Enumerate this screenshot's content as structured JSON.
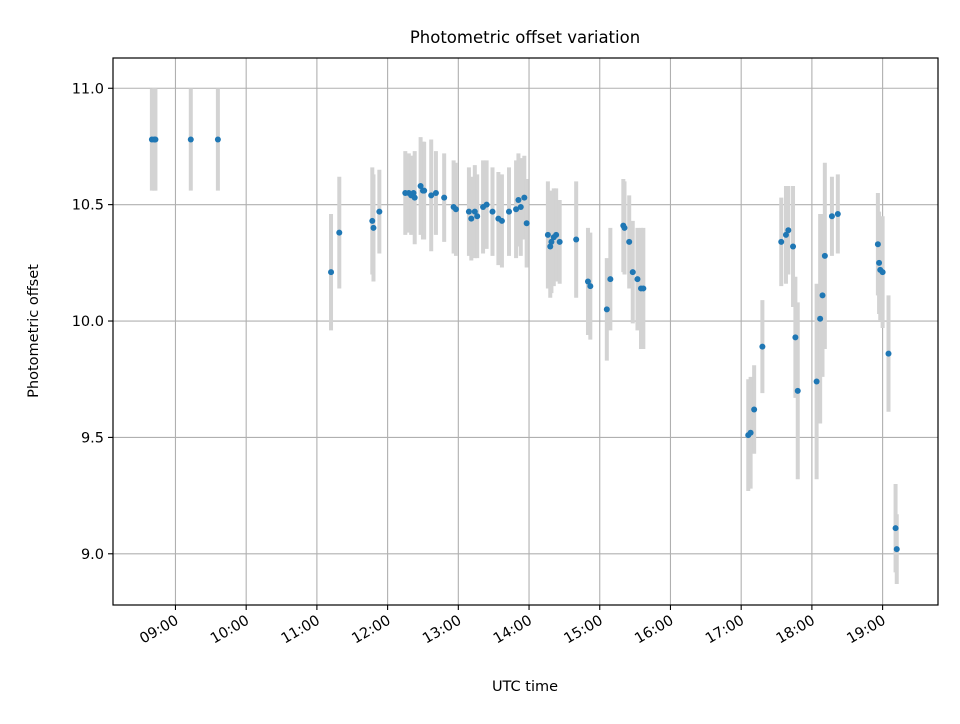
{
  "chart_data": {
    "type": "scatter",
    "title": "Photometric offset variation",
    "xlabel": "UTC time",
    "ylabel": "Photometric offset",
    "xlim": [
      "08:07",
      "19:47"
    ],
    "ylim": [
      8.78,
      11.13
    ],
    "x_ticks": [
      "09:00",
      "10:00",
      "11:00",
      "12:00",
      "13:00",
      "14:00",
      "15:00",
      "16:00",
      "17:00",
      "18:00",
      "19:00"
    ],
    "y_ticks": [
      "9.0",
      "9.5",
      "10.0",
      "10.5",
      "11.0"
    ],
    "grid": true,
    "colors": {
      "point": "#1f77b4",
      "errorbar": "#d3d3d3",
      "grid": "#b0b0b0",
      "axes": "#000000"
    },
    "points": [
      {
        "t": "08:40",
        "y": 10.78,
        "err": 0.22
      },
      {
        "t": "08:42",
        "y": 10.78,
        "err": 0.22
      },
      {
        "t": "08:43",
        "y": 10.78,
        "err": 0.22
      },
      {
        "t": "09:13",
        "y": 10.78,
        "err": 0.22
      },
      {
        "t": "09:36",
        "y": 10.78,
        "err": 0.22
      },
      {
        "t": "11:12",
        "y": 10.21,
        "err": 0.25
      },
      {
        "t": "11:19",
        "y": 10.38,
        "err": 0.24
      },
      {
        "t": "11:47",
        "y": 10.43,
        "err": 0.23
      },
      {
        "t": "11:48",
        "y": 10.4,
        "err": 0.23
      },
      {
        "t": "11:53",
        "y": 10.47,
        "err": 0.18
      },
      {
        "t": "12:15",
        "y": 10.55,
        "err": 0.18
      },
      {
        "t": "12:18",
        "y": 10.55,
        "err": 0.17
      },
      {
        "t": "12:20",
        "y": 10.54,
        "err": 0.17
      },
      {
        "t": "12:22",
        "y": 10.55,
        "err": 0.16
      },
      {
        "t": "12:23",
        "y": 10.53,
        "err": 0.2
      },
      {
        "t": "12:28",
        "y": 10.58,
        "err": 0.21
      },
      {
        "t": "12:30",
        "y": 10.56,
        "err": 0.21
      },
      {
        "t": "12:31",
        "y": 10.56,
        "err": 0.21
      },
      {
        "t": "12:37",
        "y": 10.54,
        "err": 0.24
      },
      {
        "t": "12:41",
        "y": 10.55,
        "err": 0.18
      },
      {
        "t": "12:48",
        "y": 10.53,
        "err": 0.19
      },
      {
        "t": "12:56",
        "y": 10.49,
        "err": 0.2
      },
      {
        "t": "12:58",
        "y": 10.48,
        "err": 0.2
      },
      {
        "t": "13:09",
        "y": 10.47,
        "err": 0.19
      },
      {
        "t": "13:11",
        "y": 10.44,
        "err": 0.18
      },
      {
        "t": "13:14",
        "y": 10.47,
        "err": 0.2
      },
      {
        "t": "13:16",
        "y": 10.45,
        "err": 0.18
      },
      {
        "t": "13:21",
        "y": 10.49,
        "err": 0.2
      },
      {
        "t": "13:24",
        "y": 10.5,
        "err": 0.19
      },
      {
        "t": "13:29",
        "y": 10.47,
        "err": 0.19
      },
      {
        "t": "13:34",
        "y": 10.44,
        "err": 0.2
      },
      {
        "t": "13:37",
        "y": 10.43,
        "err": 0.2
      },
      {
        "t": "13:43",
        "y": 10.47,
        "err": 0.19
      },
      {
        "t": "13:49",
        "y": 10.48,
        "err": 0.21
      },
      {
        "t": "13:51",
        "y": 10.52,
        "err": 0.2
      },
      {
        "t": "13:53",
        "y": 10.49,
        "err": 0.21
      },
      {
        "t": "13:56",
        "y": 10.53,
        "err": 0.18
      },
      {
        "t": "13:58",
        "y": 10.42,
        "err": 0.19
      },
      {
        "t": "14:16",
        "y": 10.37,
        "err": 0.23
      },
      {
        "t": "14:18",
        "y": 10.32,
        "err": 0.22
      },
      {
        "t": "14:19",
        "y": 10.34,
        "err": 0.22
      },
      {
        "t": "14:21",
        "y": 10.36,
        "err": 0.21
      },
      {
        "t": "14:23",
        "y": 10.37,
        "err": 0.2
      },
      {
        "t": "14:26",
        "y": 10.34,
        "err": 0.18
      },
      {
        "t": "14:40",
        "y": 10.35,
        "err": 0.25
      },
      {
        "t": "14:50",
        "y": 10.17,
        "err": 0.23
      },
      {
        "t": "14:52",
        "y": 10.15,
        "err": 0.23
      },
      {
        "t": "15:06",
        "y": 10.05,
        "err": 0.22
      },
      {
        "t": "15:09",
        "y": 10.18,
        "err": 0.22
      },
      {
        "t": "15:20",
        "y": 10.41,
        "err": 0.2
      },
      {
        "t": "15:21",
        "y": 10.4,
        "err": 0.2
      },
      {
        "t": "15:25",
        "y": 10.34,
        "err": 0.2
      },
      {
        "t": "15:28",
        "y": 10.21,
        "err": 0.22
      },
      {
        "t": "15:32",
        "y": 10.18,
        "err": 0.22
      },
      {
        "t": "15:35",
        "y": 10.14,
        "err": 0.26
      },
      {
        "t": "15:37",
        "y": 10.14,
        "err": 0.26
      },
      {
        "t": "17:06",
        "y": 9.51,
        "err": 0.24
      },
      {
        "t": "17:08",
        "y": 9.52,
        "err": 0.24
      },
      {
        "t": "17:11",
        "y": 9.62,
        "err": 0.19
      },
      {
        "t": "17:18",
        "y": 9.89,
        "err": 0.2
      },
      {
        "t": "17:34",
        "y": 10.34,
        "err": 0.19
      },
      {
        "t": "17:38",
        "y": 10.37,
        "err": 0.21
      },
      {
        "t": "17:40",
        "y": 10.39,
        "err": 0.19
      },
      {
        "t": "17:44",
        "y": 10.32,
        "err": 0.26
      },
      {
        "t": "17:46",
        "y": 9.93,
        "err": 0.26
      },
      {
        "t": "17:48",
        "y": 9.7,
        "err": 0.38
      },
      {
        "t": "18:04",
        "y": 9.74,
        "err": 0.42
      },
      {
        "t": "18:07",
        "y": 10.01,
        "err": 0.45
      },
      {
        "t": "18:09",
        "y": 10.11,
        "err": 0.35
      },
      {
        "t": "18:11",
        "y": 10.28,
        "err": 0.4
      },
      {
        "t": "18:17",
        "y": 10.45,
        "err": 0.17
      },
      {
        "t": "18:22",
        "y": 10.46,
        "err": 0.17
      },
      {
        "t": "18:56",
        "y": 10.33,
        "err": 0.22
      },
      {
        "t": "18:57",
        "y": 10.25,
        "err": 0.22
      },
      {
        "t": "18:58",
        "y": 10.22,
        "err": 0.22
      },
      {
        "t": "19:00",
        "y": 10.21,
        "err": 0.24
      },
      {
        "t": "19:05",
        "y": 9.86,
        "err": 0.25
      },
      {
        "t": "19:11",
        "y": 9.11,
        "err": 0.19
      },
      {
        "t": "19:12",
        "y": 9.02,
        "err": 0.15
      }
    ]
  }
}
